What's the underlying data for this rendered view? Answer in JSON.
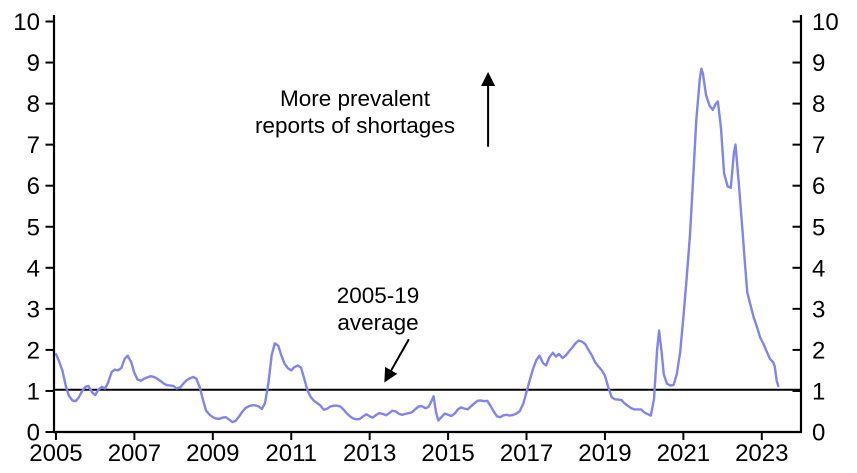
{
  "chart_data": {
    "type": "line",
    "title": "",
    "xlabel": "",
    "ylabel": "",
    "grid": false,
    "xlim": [
      2004.95,
      2024.0
    ],
    "ylim": [
      0,
      10
    ],
    "x_ticks": [
      2005,
      2007,
      2009,
      2011,
      2013,
      2015,
      2017,
      2019,
      2021,
      2023
    ],
    "y_ticks": [
      0,
      1,
      2,
      3,
      4,
      5,
      6,
      7,
      8,
      9,
      10
    ],
    "y_axis_right_mirrored": true,
    "axis_color": "#000000",
    "line_color": "#8185e8",
    "average_reference": {
      "value": 1.03,
      "label": "2005-19 average"
    },
    "annotations": {
      "direction_note": {
        "line1": "More prevalent",
        "line2": "reports of shortages"
      },
      "average_note": {
        "line1": "2005-19",
        "line2": "average"
      },
      "up_arrow": {
        "t": 2016.02,
        "v_from": 6.95,
        "v_to": 8.72
      },
      "average_arrow": {
        "t_from": 2014.0,
        "v_from": 2.26,
        "t_to": 2013.4,
        "v_to": 1.25
      }
    },
    "series": [
      {
        "name": "reports of shortages",
        "points": [
          [
            2005.0,
            1.9
          ],
          [
            2005.08,
            1.72
          ],
          [
            2005.17,
            1.48
          ],
          [
            2005.25,
            1.12
          ],
          [
            2005.33,
            0.88
          ],
          [
            2005.42,
            0.77
          ],
          [
            2005.5,
            0.75
          ],
          [
            2005.58,
            0.84
          ],
          [
            2005.67,
            1.0
          ],
          [
            2005.75,
            1.1
          ],
          [
            2005.83,
            1.12
          ],
          [
            2005.92,
            0.97
          ],
          [
            2006.0,
            0.9
          ],
          [
            2006.08,
            1.03
          ],
          [
            2006.17,
            1.1
          ],
          [
            2006.25,
            1.06
          ],
          [
            2006.33,
            1.2
          ],
          [
            2006.42,
            1.46
          ],
          [
            2006.5,
            1.52
          ],
          [
            2006.58,
            1.5
          ],
          [
            2006.67,
            1.56
          ],
          [
            2006.75,
            1.78
          ],
          [
            2006.83,
            1.86
          ],
          [
            2006.92,
            1.7
          ],
          [
            2007.0,
            1.44
          ],
          [
            2007.08,
            1.28
          ],
          [
            2007.17,
            1.25
          ],
          [
            2007.25,
            1.3
          ],
          [
            2007.33,
            1.33
          ],
          [
            2007.42,
            1.36
          ],
          [
            2007.5,
            1.34
          ],
          [
            2007.58,
            1.3
          ],
          [
            2007.67,
            1.24
          ],
          [
            2007.75,
            1.18
          ],
          [
            2007.83,
            1.14
          ],
          [
            2007.92,
            1.13
          ],
          [
            2008.0,
            1.12
          ],
          [
            2008.08,
            1.06
          ],
          [
            2008.17,
            1.09
          ],
          [
            2008.25,
            1.18
          ],
          [
            2008.33,
            1.26
          ],
          [
            2008.42,
            1.31
          ],
          [
            2008.5,
            1.34
          ],
          [
            2008.58,
            1.3
          ],
          [
            2008.67,
            1.08
          ],
          [
            2008.75,
            0.78
          ],
          [
            2008.83,
            0.52
          ],
          [
            2008.92,
            0.42
          ],
          [
            2009.0,
            0.36
          ],
          [
            2009.08,
            0.33
          ],
          [
            2009.17,
            0.32
          ],
          [
            2009.25,
            0.35
          ],
          [
            2009.33,
            0.36
          ],
          [
            2009.42,
            0.3
          ],
          [
            2009.5,
            0.24
          ],
          [
            2009.58,
            0.27
          ],
          [
            2009.67,
            0.38
          ],
          [
            2009.75,
            0.49
          ],
          [
            2009.83,
            0.58
          ],
          [
            2009.92,
            0.63
          ],
          [
            2010.0,
            0.65
          ],
          [
            2010.08,
            0.65
          ],
          [
            2010.17,
            0.62
          ],
          [
            2010.25,
            0.56
          ],
          [
            2010.33,
            0.7
          ],
          [
            2010.42,
            1.2
          ],
          [
            2010.5,
            1.86
          ],
          [
            2010.58,
            2.16
          ],
          [
            2010.67,
            2.1
          ],
          [
            2010.75,
            1.86
          ],
          [
            2010.83,
            1.66
          ],
          [
            2010.92,
            1.55
          ],
          [
            2011.0,
            1.5
          ],
          [
            2011.08,
            1.58
          ],
          [
            2011.17,
            1.62
          ],
          [
            2011.25,
            1.57
          ],
          [
            2011.33,
            1.3
          ],
          [
            2011.42,
            1.0
          ],
          [
            2011.5,
            0.85
          ],
          [
            2011.58,
            0.76
          ],
          [
            2011.67,
            0.7
          ],
          [
            2011.75,
            0.64
          ],
          [
            2011.83,
            0.54
          ],
          [
            2011.92,
            0.57
          ],
          [
            2012.0,
            0.62
          ],
          [
            2012.08,
            0.64
          ],
          [
            2012.17,
            0.64
          ],
          [
            2012.25,
            0.62
          ],
          [
            2012.33,
            0.55
          ],
          [
            2012.42,
            0.45
          ],
          [
            2012.5,
            0.38
          ],
          [
            2012.58,
            0.33
          ],
          [
            2012.67,
            0.31
          ],
          [
            2012.75,
            0.32
          ],
          [
            2012.83,
            0.38
          ],
          [
            2012.92,
            0.43
          ],
          [
            2013.0,
            0.38
          ],
          [
            2013.08,
            0.35
          ],
          [
            2013.17,
            0.42
          ],
          [
            2013.25,
            0.46
          ],
          [
            2013.33,
            0.44
          ],
          [
            2013.42,
            0.41
          ],
          [
            2013.5,
            0.46
          ],
          [
            2013.58,
            0.52
          ],
          [
            2013.67,
            0.5
          ],
          [
            2013.75,
            0.44
          ],
          [
            2013.83,
            0.42
          ],
          [
            2013.92,
            0.44
          ],
          [
            2014.0,
            0.46
          ],
          [
            2014.08,
            0.48
          ],
          [
            2014.17,
            0.56
          ],
          [
            2014.25,
            0.62
          ],
          [
            2014.33,
            0.63
          ],
          [
            2014.42,
            0.58
          ],
          [
            2014.5,
            0.61
          ],
          [
            2014.58,
            0.76
          ],
          [
            2014.63,
            0.87
          ],
          [
            2014.69,
            0.5
          ],
          [
            2014.75,
            0.28
          ],
          [
            2014.83,
            0.36
          ],
          [
            2014.92,
            0.45
          ],
          [
            2015.0,
            0.42
          ],
          [
            2015.08,
            0.39
          ],
          [
            2015.17,
            0.45
          ],
          [
            2015.25,
            0.55
          ],
          [
            2015.33,
            0.6
          ],
          [
            2015.42,
            0.57
          ],
          [
            2015.5,
            0.55
          ],
          [
            2015.58,
            0.62
          ],
          [
            2015.67,
            0.7
          ],
          [
            2015.75,
            0.76
          ],
          [
            2015.83,
            0.77
          ],
          [
            2015.92,
            0.75
          ],
          [
            2016.0,
            0.76
          ],
          [
            2016.08,
            0.64
          ],
          [
            2016.17,
            0.49
          ],
          [
            2016.25,
            0.38
          ],
          [
            2016.33,
            0.36
          ],
          [
            2016.42,
            0.41
          ],
          [
            2016.5,
            0.42
          ],
          [
            2016.58,
            0.4
          ],
          [
            2016.67,
            0.42
          ],
          [
            2016.75,
            0.45
          ],
          [
            2016.83,
            0.51
          ],
          [
            2016.92,
            0.7
          ],
          [
            2017.0,
            0.97
          ],
          [
            2017.08,
            1.25
          ],
          [
            2017.17,
            1.55
          ],
          [
            2017.25,
            1.75
          ],
          [
            2017.33,
            1.86
          ],
          [
            2017.42,
            1.68
          ],
          [
            2017.5,
            1.62
          ],
          [
            2017.58,
            1.82
          ],
          [
            2017.67,
            1.93
          ],
          [
            2017.75,
            1.84
          ],
          [
            2017.83,
            1.9
          ],
          [
            2017.92,
            1.8
          ],
          [
            2018.0,
            1.86
          ],
          [
            2018.08,
            1.96
          ],
          [
            2018.17,
            2.06
          ],
          [
            2018.25,
            2.16
          ],
          [
            2018.33,
            2.23
          ],
          [
            2018.42,
            2.2
          ],
          [
            2018.5,
            2.14
          ],
          [
            2018.58,
            2.0
          ],
          [
            2018.67,
            1.86
          ],
          [
            2018.75,
            1.7
          ],
          [
            2018.83,
            1.6
          ],
          [
            2018.92,
            1.5
          ],
          [
            2019.0,
            1.38
          ],
          [
            2019.08,
            1.1
          ],
          [
            2019.17,
            0.85
          ],
          [
            2019.25,
            0.8
          ],
          [
            2019.33,
            0.79
          ],
          [
            2019.42,
            0.78
          ],
          [
            2019.5,
            0.7
          ],
          [
            2019.58,
            0.64
          ],
          [
            2019.67,
            0.58
          ],
          [
            2019.75,
            0.55
          ],
          [
            2019.83,
            0.55
          ],
          [
            2019.92,
            0.55
          ],
          [
            2020.0,
            0.48
          ],
          [
            2020.08,
            0.44
          ],
          [
            2020.17,
            0.4
          ],
          [
            2020.25,
            0.8
          ],
          [
            2020.33,
            2.0
          ],
          [
            2020.38,
            2.47
          ],
          [
            2020.45,
            1.9
          ],
          [
            2020.5,
            1.4
          ],
          [
            2020.58,
            1.18
          ],
          [
            2020.67,
            1.13
          ],
          [
            2020.75,
            1.15
          ],
          [
            2020.83,
            1.4
          ],
          [
            2020.92,
            1.95
          ],
          [
            2021.0,
            2.8
          ],
          [
            2021.08,
            3.7
          ],
          [
            2021.17,
            4.8
          ],
          [
            2021.25,
            6.2
          ],
          [
            2021.33,
            7.6
          ],
          [
            2021.42,
            8.6
          ],
          [
            2021.46,
            8.85
          ],
          [
            2021.5,
            8.72
          ],
          [
            2021.58,
            8.2
          ],
          [
            2021.67,
            7.95
          ],
          [
            2021.75,
            7.85
          ],
          [
            2021.83,
            8.0
          ],
          [
            2021.88,
            8.05
          ],
          [
            2021.96,
            7.4
          ],
          [
            2022.04,
            6.3
          ],
          [
            2022.13,
            5.98
          ],
          [
            2022.21,
            5.95
          ],
          [
            2022.29,
            6.8
          ],
          [
            2022.33,
            7.0
          ],
          [
            2022.42,
            6.0
          ],
          [
            2022.5,
            5.0
          ],
          [
            2022.58,
            4.0
          ],
          [
            2022.63,
            3.4
          ],
          [
            2022.71,
            3.1
          ],
          [
            2022.79,
            2.8
          ],
          [
            2022.88,
            2.55
          ],
          [
            2022.96,
            2.3
          ],
          [
            2023.04,
            2.15
          ],
          [
            2023.13,
            1.95
          ],
          [
            2023.21,
            1.78
          ],
          [
            2023.29,
            1.7
          ],
          [
            2023.33,
            1.6
          ],
          [
            2023.38,
            1.25
          ],
          [
            2023.42,
            1.12
          ]
        ]
      }
    ]
  }
}
